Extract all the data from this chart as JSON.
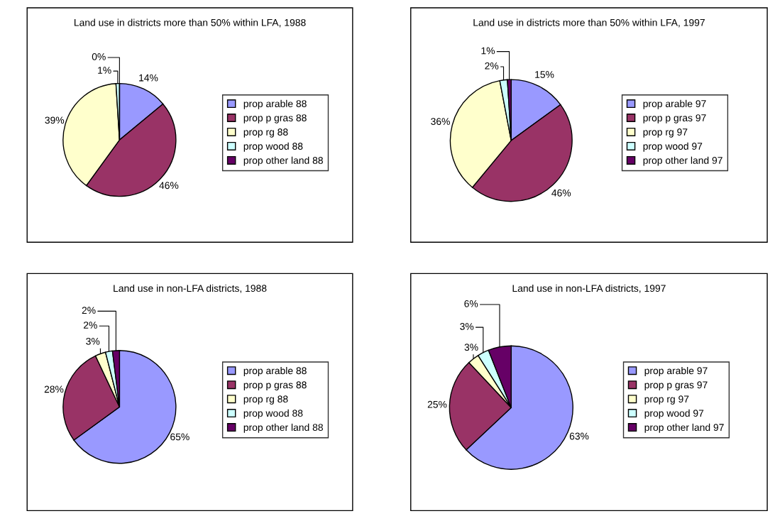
{
  "chart_data": [
    {
      "type": "pie",
      "title": "Land use in districts more than 50% within LFA, 1988",
      "categories": [
        "prop arable 88",
        "prop p gras 88",
        "prop rg 88",
        "prop wood 88",
        "prop other land 88"
      ],
      "values": [
        14,
        46,
        39,
        1,
        0
      ],
      "value_labels": [
        "14%",
        "46%",
        "39%",
        "1%",
        "0%"
      ],
      "colors": [
        "#9999ff",
        "#993366",
        "#ffffcc",
        "#ccffff",
        "#660066"
      ],
      "legend": "right"
    },
    {
      "type": "pie",
      "title": "Land use in districts more than 50% within LFA, 1997",
      "categories": [
        "prop arable 97",
        "prop p gras 97",
        "prop rg 97",
        "prop wood 97",
        "prop other land 97"
      ],
      "values": [
        15,
        46,
        36,
        2,
        1
      ],
      "value_labels": [
        "15%",
        "46%",
        "36%",
        "2%",
        "1%"
      ],
      "colors": [
        "#9999ff",
        "#993366",
        "#ffffcc",
        "#ccffff",
        "#660066"
      ],
      "legend": "right"
    },
    {
      "type": "pie",
      "title": "Land use in non-LFA districts, 1988",
      "categories": [
        "prop arable 88",
        "prop p gras 88",
        "prop rg 88",
        "prop wood 88",
        "prop other land 88"
      ],
      "values": [
        65,
        28,
        3,
        2,
        2
      ],
      "value_labels": [
        "65%",
        "28%",
        "3%",
        "2%",
        "2%"
      ],
      "colors": [
        "#9999ff",
        "#993366",
        "#ffffcc",
        "#ccffff",
        "#660066"
      ],
      "legend": "right"
    },
    {
      "type": "pie",
      "title": "Land use in non-LFA districts, 1997",
      "categories": [
        "prop arable 97",
        "prop p gras 97",
        "prop rg 97",
        "prop wood 97",
        "prop other land 97"
      ],
      "values": [
        63,
        25,
        3,
        3,
        6
      ],
      "value_labels": [
        "63%",
        "25%",
        "3%",
        "3%",
        "6%"
      ],
      "colors": [
        "#9999ff",
        "#993366",
        "#ffffcc",
        "#ccffff",
        "#660066"
      ],
      "legend": "right"
    }
  ]
}
